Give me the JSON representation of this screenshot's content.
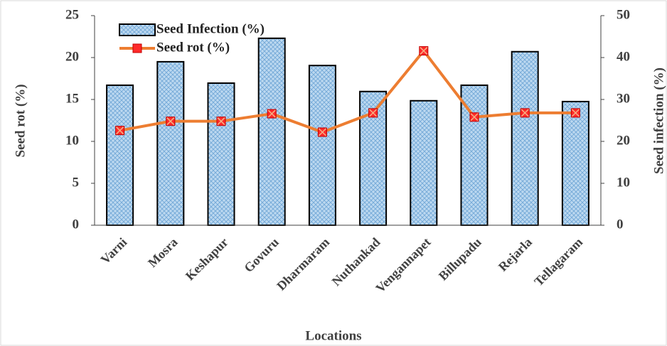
{
  "chart_data": {
    "type": "combo",
    "x_label": "Locations",
    "y_label": "Seed rot (%)",
    "y2_label": "Seed infection (%)",
    "categories": [
      "Varni",
      "Mosra",
      "Keshapur",
      "Govuru",
      "Dharmaram",
      "Nuthankad",
      "Vengannapet",
      "Billupadu",
      "Rejarla",
      "Tellagaram"
    ],
    "series": [
      {
        "name": "Seed Infection (%)",
        "type": "bar",
        "axis": "y2",
        "color": "#9dc3e6",
        "values": [
          33.4,
          39,
          33.9,
          44.6,
          38.1,
          31.9,
          29.7,
          33.4,
          41.4,
          29.5
        ]
      },
      {
        "name": "Seed rot (%)",
        "type": "line",
        "axis": "y",
        "color": "#ed7d31",
        "values": [
          11.3,
          12.4,
          12.4,
          13.3,
          11.1,
          13.4,
          20.8,
          12.9,
          13.4,
          13.4
        ]
      }
    ],
    "ylim": [
      0,
      25
    ],
    "yticks": [
      0,
      5,
      10,
      15,
      20,
      25
    ],
    "y2lim": [
      0,
      50
    ],
    "y2ticks": [
      0,
      10,
      20,
      30,
      40,
      50
    ],
    "legend": "top-left"
  }
}
